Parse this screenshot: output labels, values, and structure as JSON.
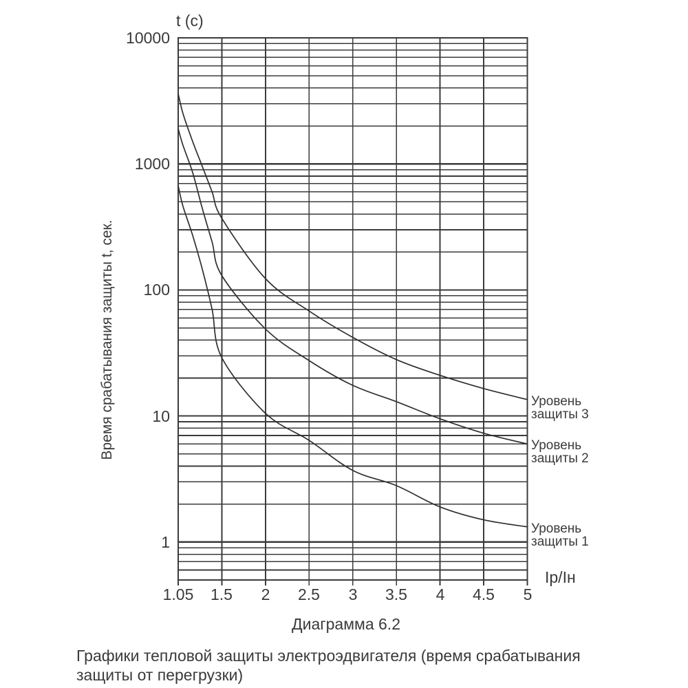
{
  "chart_data": {
    "type": "line",
    "title": "Диаграмма 6.2",
    "ylabel": "Время срабатывания защиты t, сек.",
    "y_unit_label": "t (c)",
    "x_unit_label": "Ip/Iн",
    "x_ticks": [
      1.05,
      1.5,
      2,
      2.5,
      3,
      3.5,
      4,
      4.5,
      5
    ],
    "x_tick_labels": [
      "1.05",
      "1.5",
      "2",
      "2.5",
      "3",
      "3.5",
      "4",
      "4.5",
      "5"
    ],
    "y_major": [
      10000,
      1000,
      100,
      10,
      1
    ],
    "y_tick_labels": [
      "10000",
      "1000",
      "100",
      "10",
      "1"
    ],
    "ylim": [
      0.5,
      10000
    ],
    "xlabel": "Ip/Iн",
    "grid": "log-major-and-minor",
    "legend_position": "right-of-curve-ends",
    "series": [
      {
        "name": "Уровень защиты 3",
        "label_lines": [
          "Уровень",
          "защиты 3"
        ],
        "points": [
          [
            1.05,
            3600
          ],
          [
            1.1,
            2500
          ],
          [
            1.2,
            1500
          ],
          [
            1.3,
            950
          ],
          [
            1.4,
            600
          ],
          [
            1.5,
            370
          ],
          [
            2,
            123
          ],
          [
            2.5,
            68
          ],
          [
            3,
            42
          ],
          [
            3.5,
            28
          ],
          [
            4,
            21
          ],
          [
            4.5,
            16.5
          ],
          [
            5,
            13.5
          ]
        ]
      },
      {
        "name": "Уровень защиты 2",
        "label_lines": [
          "Уровень",
          "защиты 2"
        ],
        "points": [
          [
            1.05,
            1900
          ],
          [
            1.1,
            1400
          ],
          [
            1.2,
            850
          ],
          [
            1.3,
            440
          ],
          [
            1.4,
            240
          ],
          [
            1.5,
            130
          ],
          [
            2,
            49
          ],
          [
            2.5,
            27.5
          ],
          [
            3,
            17.5
          ],
          [
            3.5,
            13
          ],
          [
            4,
            9.5
          ],
          [
            4.5,
            7.3
          ],
          [
            5,
            6
          ]
        ]
      },
      {
        "name": "Уровень защиты 1",
        "label_lines": [
          "Уровень",
          "защиты 1"
        ],
        "points": [
          [
            1.05,
            670
          ],
          [
            1.1,
            460
          ],
          [
            1.2,
            270
          ],
          [
            1.3,
            145
          ],
          [
            1.4,
            70
          ],
          [
            1.5,
            29
          ],
          [
            2,
            10.5
          ],
          [
            2.5,
            6.4
          ],
          [
            3,
            3.7
          ],
          [
            3.5,
            2.8
          ],
          [
            4,
            1.9
          ],
          [
            4.5,
            1.5
          ],
          [
            5,
            1.32
          ]
        ]
      }
    ]
  },
  "caption": "Графики тепловой защиты электроэдвигателя (время срабатывания защиты от перегрузки)",
  "colors": {
    "grid_line": "#3b3b3b",
    "curve_line": "#2f2f2f",
    "text": "#3a3a3a",
    "background": "#ffffff"
  }
}
